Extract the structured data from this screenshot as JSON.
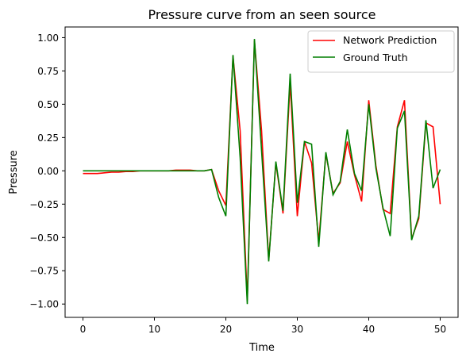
{
  "chart_data": {
    "type": "line",
    "title": "Pressure curve from an seen source",
    "xlabel": "Time",
    "ylabel": "Pressure",
    "xlim": [
      -2.5,
      52.5
    ],
    "ylim": [
      -1.1,
      1.08
    ],
    "x_ticks": [
      0,
      10,
      20,
      30,
      40,
      50
    ],
    "y_ticks": [
      -1.0,
      -0.75,
      -0.5,
      -0.25,
      0.0,
      0.25,
      0.5,
      0.75,
      1.0
    ],
    "x_tick_labels": [
      "0",
      "10",
      "20",
      "30",
      "40",
      "50"
    ],
    "y_tick_labels": [
      "−1.00",
      "−0.75",
      "−0.50",
      "−0.25",
      "0.00",
      "0.25",
      "0.50",
      "0.75",
      "1.00"
    ],
    "grid": false,
    "legend_position": "top-right",
    "x": [
      0,
      1,
      2,
      3,
      4,
      5,
      6,
      7,
      8,
      9,
      10,
      11,
      12,
      13,
      14,
      15,
      16,
      17,
      18,
      19,
      20,
      21,
      22,
      23,
      24,
      25,
      26,
      27,
      28,
      29,
      30,
      31,
      32,
      33,
      34,
      35,
      36,
      37,
      38,
      39,
      40,
      41,
      42,
      43,
      44,
      45,
      46,
      47,
      48,
      49,
      50
    ],
    "series": [
      {
        "name": "Network Prediction",
        "color": "#ff0000",
        "values": [
          -0.02,
          -0.02,
          -0.02,
          -0.015,
          -0.01,
          -0.01,
          -0.005,
          -0.005,
          0,
          0,
          0,
          0,
          0,
          0.005,
          0.005,
          0.005,
          0,
          0,
          0.01,
          -0.15,
          -0.26,
          0.86,
          0.3,
          -0.97,
          0.98,
          0.3,
          -0.67,
          0.06,
          -0.32,
          0.66,
          -0.34,
          0.22,
          0.06,
          -0.53,
          0.13,
          -0.17,
          -0.09,
          0.22,
          -0.03,
          -0.23,
          0.53,
          0.04,
          -0.29,
          -0.32,
          0.33,
          0.53,
          -0.51,
          -0.36,
          0.36,
          0.33,
          -0.25
        ]
      },
      {
        "name": "Ground Truth",
        "color": "#007f00",
        "values": [
          0,
          0,
          0,
          0,
          0,
          0,
          0,
          0,
          0,
          0,
          0,
          0,
          0,
          0,
          0,
          0,
          0,
          0,
          0.01,
          -0.2,
          -0.34,
          0.87,
          0.1,
          -1.0,
          0.99,
          0.15,
          -0.68,
          0.07,
          -0.3,
          0.73,
          -0.24,
          0.22,
          0.2,
          -0.57,
          0.14,
          -0.18,
          -0.08,
          0.31,
          -0.02,
          -0.15,
          0.5,
          0.02,
          -0.28,
          -0.49,
          0.32,
          0.45,
          -0.52,
          -0.34,
          0.38,
          -0.13,
          0.01
        ]
      }
    ]
  }
}
